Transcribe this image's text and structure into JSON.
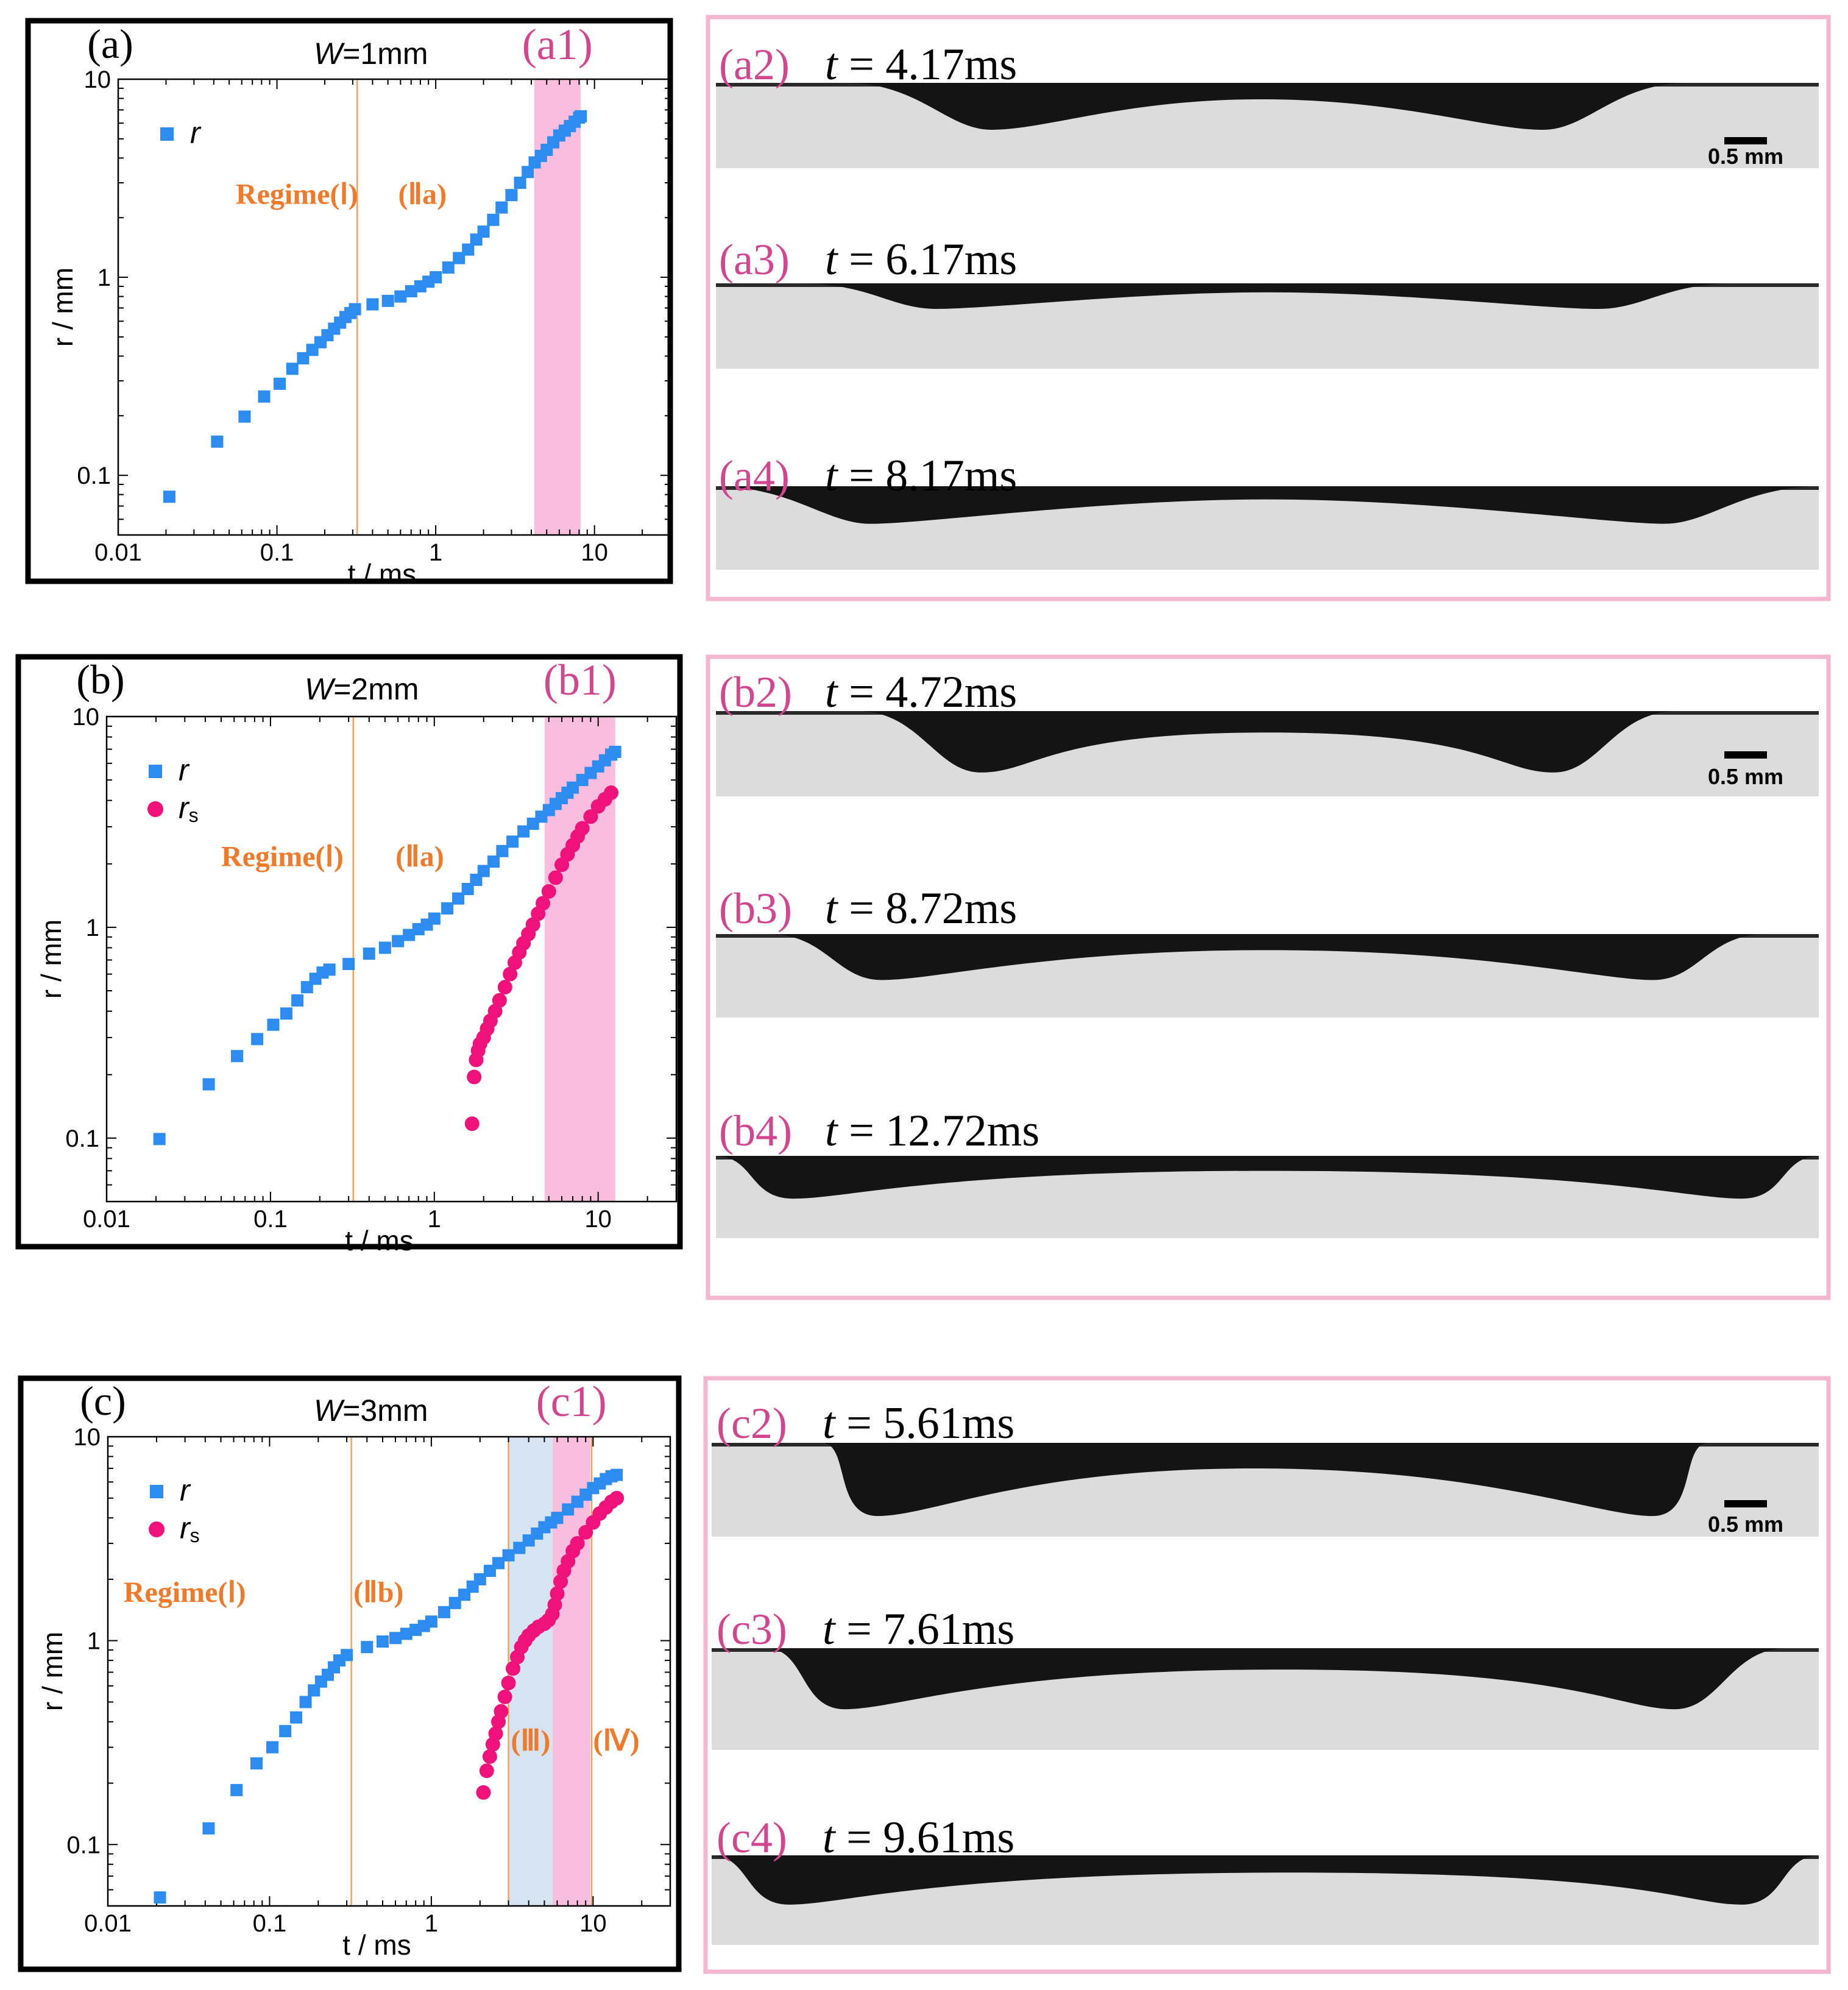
{
  "colors": {
    "series_r": "#2D8CF0",
    "series_rs": "#F0127A",
    "regime_line": "#F5A254",
    "regime_text": "#F0792A",
    "pink_band": "#F9BDDD",
    "blue_band": "#D6E4F2",
    "photo_label": "#D2458F",
    "pink_border": "#F4B6CF"
  },
  "chart_data": [
    {
      "type": "scatter",
      "panel_label": "(a)",
      "title": "W=1mm",
      "title_prefix": "W",
      "title_value": "=1mm",
      "xlabel": "t / ms",
      "ylabel": "r / mm",
      "xscale": "log",
      "yscale": "log",
      "xlim": [
        0.01,
        30
      ],
      "ylim": [
        0.05,
        10
      ],
      "xticks": [
        0.01,
        0.1,
        1,
        10
      ],
      "xtick_labels": [
        "0.01",
        "0.1",
        "1",
        "10"
      ],
      "yticks": [
        0.1,
        1,
        10
      ],
      "ytick_labels": [
        "0.1",
        "1",
        "10"
      ],
      "vlines": [
        0.32
      ],
      "bands": [
        {
          "from": 4.17,
          "to": 8.17,
          "color": "pink",
          "label": "(a1)"
        }
      ],
      "regime_labels": [
        {
          "text": "Regime(Ⅰ)",
          "x": 0.055,
          "y": 2.35
        },
        {
          "text": "(Ⅱa)",
          "x": 0.58,
          "y": 2.35
        }
      ],
      "series": [
        {
          "name": "r",
          "marker": "square",
          "x": [
            0.021,
            0.042,
            0.0625,
            0.083,
            0.104,
            0.125,
            0.146,
            0.167,
            0.188,
            0.208,
            0.229,
            0.25,
            0.27,
            0.29,
            0.31,
            0.4,
            0.5,
            0.6,
            0.7,
            0.8,
            0.9,
            1.0,
            1.2,
            1.4,
            1.6,
            1.8,
            2.0,
            2.3,
            2.6,
            3.0,
            3.4,
            3.8,
            4.2,
            4.6,
            5.0,
            5.5,
            6.0,
            6.5,
            7.0,
            7.5,
            8.0,
            8.2
          ],
          "y": [
            0.078,
            0.148,
            0.198,
            0.25,
            0.29,
            0.345,
            0.39,
            0.43,
            0.47,
            0.51,
            0.55,
            0.59,
            0.63,
            0.66,
            0.69,
            0.73,
            0.76,
            0.8,
            0.85,
            0.9,
            0.95,
            1.0,
            1.12,
            1.25,
            1.38,
            1.55,
            1.7,
            1.95,
            2.25,
            2.6,
            3.0,
            3.4,
            3.8,
            4.1,
            4.4,
            4.8,
            5.2,
            5.5,
            5.8,
            6.1,
            6.4,
            6.5
          ]
        }
      ],
      "legend": [
        {
          "name": "r",
          "marker": "square",
          "sub": ""
        }
      ],
      "legend_position": "top-left"
    },
    {
      "type": "scatter",
      "panel_label": "(b)",
      "title": "W=2mm",
      "title_prefix": "W",
      "title_value": "=2mm",
      "xlabel": "t / ms",
      "ylabel": "r / mm",
      "xscale": "log",
      "yscale": "log",
      "xlim": [
        0.01,
        30
      ],
      "ylim": [
        0.05,
        10
      ],
      "xticks": [
        0.01,
        0.1,
        1,
        10
      ],
      "xtick_labels": [
        "0.01",
        "0.1",
        "1",
        "10"
      ],
      "yticks": [
        0.1,
        1,
        10
      ],
      "ytick_labels": [
        "0.1",
        "1",
        "10"
      ],
      "vlines": [
        0.32
      ],
      "bands": [
        {
          "from": 4.72,
          "to": 12.72,
          "color": "pink",
          "label": "(b1)"
        }
      ],
      "regime_labels": [
        {
          "text": "Regime(Ⅰ)",
          "x": 0.05,
          "y": 1.95
        },
        {
          "text": "(Ⅱa)",
          "x": 0.58,
          "y": 1.95
        }
      ],
      "series": [
        {
          "name": "r",
          "marker": "square",
          "x": [
            0.021,
            0.042,
            0.0625,
            0.083,
            0.104,
            0.125,
            0.146,
            0.167,
            0.188,
            0.208,
            0.229,
            0.3,
            0.4,
            0.5,
            0.6,
            0.7,
            0.8,
            0.9,
            1.0,
            1.2,
            1.4,
            1.6,
            1.8,
            2.0,
            2.3,
            2.6,
            3.0,
            3.5,
            4.0,
            4.5,
            5.0,
            5.5,
            6.0,
            6.5,
            7.0,
            8.0,
            9.0,
            10.0,
            11.0,
            12.0,
            12.7
          ],
          "y": [
            0.099,
            0.18,
            0.245,
            0.295,
            0.345,
            0.39,
            0.45,
            0.52,
            0.57,
            0.61,
            0.63,
            0.67,
            0.75,
            0.8,
            0.86,
            0.92,
            0.98,
            1.03,
            1.1,
            1.23,
            1.37,
            1.52,
            1.68,
            1.85,
            2.05,
            2.3,
            2.55,
            2.85,
            3.1,
            3.35,
            3.6,
            3.85,
            4.1,
            4.35,
            4.6,
            5.0,
            5.4,
            5.8,
            6.2,
            6.6,
            6.8
          ]
        },
        {
          "name": "rs",
          "marker": "circle",
          "x": [
            1.7,
            1.75,
            1.8,
            1.85,
            1.9,
            2.0,
            2.1,
            2.2,
            2.35,
            2.5,
            2.7,
            2.9,
            3.1,
            3.3,
            3.5,
            3.75,
            4.0,
            4.3,
            4.6,
            5.0,
            5.5,
            6.0,
            6.5,
            7.0,
            7.5,
            8.0,
            9.0,
            10.0,
            11.0,
            12.0
          ],
          "y": [
            0.117,
            0.195,
            0.235,
            0.26,
            0.28,
            0.3,
            0.33,
            0.36,
            0.4,
            0.45,
            0.52,
            0.6,
            0.68,
            0.76,
            0.84,
            0.93,
            1.03,
            1.16,
            1.3,
            1.48,
            1.72,
            1.98,
            2.22,
            2.45,
            2.7,
            2.95,
            3.35,
            3.75,
            4.05,
            4.35
          ]
        }
      ],
      "legend": [
        {
          "name": "r",
          "marker": "square",
          "sub": ""
        },
        {
          "name": "r",
          "marker": "circle",
          "sub": "s"
        }
      ],
      "legend_position": "top-left"
    },
    {
      "type": "scatter",
      "panel_label": "(c)",
      "title": "W=3mm",
      "title_prefix": "W",
      "title_value": "=3mm",
      "xlabel": "t / ms",
      "ylabel": "r / mm",
      "xscale": "log",
      "yscale": "log",
      "xlim": [
        0.01,
        30
      ],
      "ylim": [
        0.05,
        10
      ],
      "xticks": [
        0.01,
        0.1,
        1,
        10
      ],
      "xtick_labels": [
        "0.01",
        "0.1",
        "1",
        "10"
      ],
      "yticks": [
        0.1,
        1,
        10
      ],
      "ytick_labels": [
        "0.1",
        "1",
        "10"
      ],
      "vlines": [
        0.32,
        3.0,
        9.8
      ],
      "bands": [
        {
          "from": 3.0,
          "to": 5.61,
          "color": "blue",
          "label": ""
        },
        {
          "from": 5.61,
          "to": 9.61,
          "color": "pink",
          "label": "(c1)"
        }
      ],
      "regime_labels": [
        {
          "text": "Regime(Ⅰ)",
          "x": 0.0125,
          "y": 1.55
        },
        {
          "text": "(Ⅱb)",
          "x": 0.33,
          "y": 1.55
        },
        {
          "text": "(Ⅲ)",
          "x": 3.1,
          "y": 0.29
        },
        {
          "text": "(Ⅳ)",
          "x": 10.0,
          "y": 0.29
        }
      ],
      "series": [
        {
          "name": "r",
          "marker": "square",
          "x": [
            0.021,
            0.042,
            0.0625,
            0.083,
            0.104,
            0.125,
            0.146,
            0.167,
            0.188,
            0.208,
            0.229,
            0.25,
            0.27,
            0.3,
            0.4,
            0.5,
            0.6,
            0.7,
            0.8,
            0.9,
            1.0,
            1.2,
            1.4,
            1.6,
            1.8,
            2.0,
            2.3,
            2.6,
            3.0,
            3.5,
            4.0,
            4.5,
            5.0,
            5.5,
            6.0,
            7.0,
            8.0,
            9.0,
            10.0,
            11.0,
            12.0,
            13.0,
            14.0
          ],
          "y": [
            0.055,
            0.12,
            0.185,
            0.25,
            0.3,
            0.36,
            0.42,
            0.5,
            0.57,
            0.63,
            0.68,
            0.74,
            0.8,
            0.85,
            0.93,
            0.99,
            1.03,
            1.08,
            1.13,
            1.18,
            1.24,
            1.38,
            1.53,
            1.68,
            1.84,
            2.0,
            2.2,
            2.4,
            2.62,
            2.85,
            3.1,
            3.35,
            3.6,
            3.8,
            4.0,
            4.4,
            4.8,
            5.2,
            5.6,
            5.9,
            6.2,
            6.4,
            6.5
          ]
        },
        {
          "name": "rs",
          "marker": "circle",
          "x": [
            2.1,
            2.2,
            2.3,
            2.4,
            2.5,
            2.6,
            2.7,
            2.85,
            3.0,
            3.2,
            3.4,
            3.6,
            3.8,
            4.0,
            4.3,
            4.6,
            5.0,
            5.3,
            5.6,
            5.8,
            6.0,
            6.3,
            6.6,
            7.0,
            7.5,
            8.0,
            9.0,
            10.0,
            11.0,
            12.0,
            13.0,
            14.0
          ],
          "y": [
            0.18,
            0.23,
            0.27,
            0.31,
            0.35,
            0.4,
            0.45,
            0.53,
            0.62,
            0.73,
            0.83,
            0.93,
            1.0,
            1.06,
            1.12,
            1.17,
            1.21,
            1.26,
            1.35,
            1.5,
            1.7,
            1.95,
            2.2,
            2.45,
            2.75,
            3.0,
            3.4,
            3.8,
            4.2,
            4.5,
            4.8,
            5.0
          ]
        }
      ],
      "legend": [
        {
          "name": "r",
          "marker": "square",
          "sub": ""
        },
        {
          "name": "r",
          "marker": "circle",
          "sub": "s"
        }
      ],
      "legend_position": "top-left"
    }
  ],
  "photo_panels": [
    {
      "group": "a",
      "scale_bar_label": "0.5 mm",
      "frames": [
        {
          "label": "(a2)",
          "time": "t = 4.17ms",
          "time_var": "t",
          "time_value": " = 4.17ms"
        },
        {
          "label": "(a3)",
          "time": "t = 6.17ms",
          "time_var": "t",
          "time_value": " = 6.17ms"
        },
        {
          "label": "(a4)",
          "time": "t = 8.17ms",
          "time_var": "t",
          "time_value": " = 8.17ms"
        }
      ]
    },
    {
      "group": "b",
      "scale_bar_label": "0.5 mm",
      "frames": [
        {
          "label": "(b2)",
          "time": "t = 4.72ms",
          "time_var": "t",
          "time_value": " = 4.72ms"
        },
        {
          "label": "(b3)",
          "time": "t = 8.72ms",
          "time_var": "t",
          "time_value": " = 8.72ms"
        },
        {
          "label": "(b4)",
          "time": "t = 12.72ms",
          "time_var": "t",
          "time_value": " = 12.72ms"
        }
      ]
    },
    {
      "group": "c",
      "scale_bar_label": "0.5 mm",
      "frames": [
        {
          "label": "(c2)",
          "time": "t = 5.61ms",
          "time_var": "t",
          "time_value": " = 5.61ms"
        },
        {
          "label": "(c3)",
          "time": "t = 7.61ms",
          "time_var": "t",
          "time_value": " = 7.61ms"
        },
        {
          "label": "(c4)",
          "time": "t = 9.61ms",
          "time_var": "t",
          "time_value": " = 9.61ms"
        }
      ]
    }
  ]
}
